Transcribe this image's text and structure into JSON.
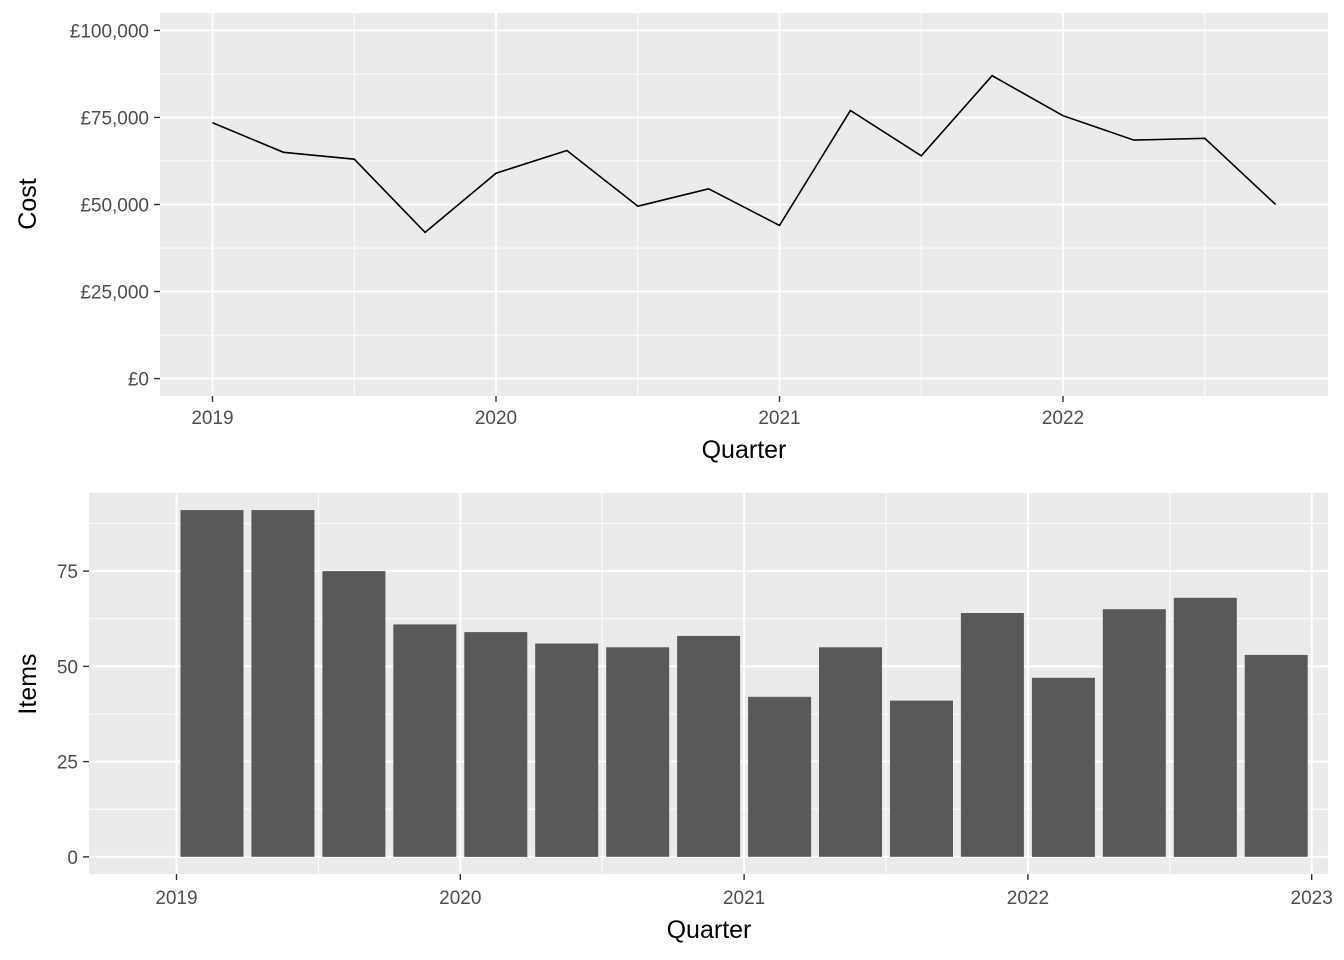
{
  "chart_data": [
    {
      "type": "line",
      "x": [
        "2019 Q1",
        "2019 Q2",
        "2019 Q3",
        "2019 Q4",
        "2020 Q1",
        "2020 Q2",
        "2020 Q3",
        "2020 Q4",
        "2021 Q1",
        "2021 Q2",
        "2021 Q3",
        "2021 Q4",
        "2022 Q1",
        "2022 Q2",
        "2022 Q3",
        "2022 Q4"
      ],
      "values": [
        73500,
        65000,
        63000,
        42000,
        59000,
        65500,
        49500,
        54500,
        44000,
        77000,
        64000,
        87000,
        75500,
        68500,
        69000,
        50000
      ],
      "xlabel": "Quarter",
      "ylabel": "Cost",
      "ylim": [
        -5000,
        105000
      ],
      "y_ticks": [
        0,
        25000,
        50000,
        75000,
        100000
      ],
      "y_tick_labels": [
        "£0",
        "£25,000",
        "£50,000",
        "£75,000",
        "£100,000"
      ],
      "x_tick_labels": [
        "2019",
        "2020",
        "2021",
        "2022"
      ],
      "grid": true
    },
    {
      "type": "bar",
      "x": [
        "2019 Q1",
        "2019 Q2",
        "2019 Q3",
        "2019 Q4",
        "2020 Q1",
        "2020 Q2",
        "2020 Q3",
        "2020 Q4",
        "2021 Q1",
        "2021 Q2",
        "2021 Q3",
        "2021 Q4",
        "2022 Q1",
        "2022 Q2",
        "2022 Q3",
        "2022 Q4"
      ],
      "values": [
        91,
        91,
        75,
        61,
        59,
        56,
        55,
        58,
        42,
        55,
        41,
        64,
        47,
        65,
        68,
        53
      ],
      "xlabel": "Quarter",
      "ylabel": "Items",
      "ylim": [
        -4.5,
        95.5
      ],
      "y_ticks": [
        0,
        25,
        50,
        75
      ],
      "y_tick_labels": [
        "0",
        "25",
        "50",
        "75"
      ],
      "x_tick_labels": [
        "2019",
        "2020",
        "2021",
        "2022",
        "2023"
      ],
      "grid": true
    }
  ]
}
